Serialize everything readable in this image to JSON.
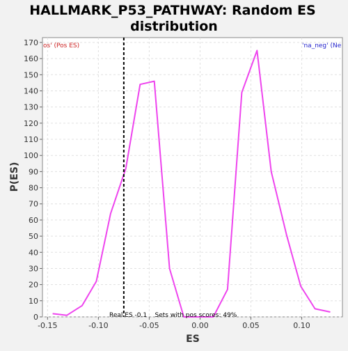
{
  "chart_data": {
    "type": "line",
    "title": "HALLMARK_P53_PATHWAY: Random ES distribution",
    "title_lines": [
      "HALLMARK_P53_PATHWAY: Random ES",
      "distribution"
    ],
    "xlabel": "ES",
    "ylabel": "P(ES)",
    "xlim": [
      -0.155,
      0.14
    ],
    "ylim": [
      0,
      173
    ],
    "x_ticks": [
      -0.15,
      -0.1,
      -0.05,
      0.0,
      0.05,
      0.1
    ],
    "x_tick_labels": [
      "-0.15",
      "-0.10",
      "-0.05",
      "0.00",
      "0.05",
      "0.10"
    ],
    "y_ticks": [
      0,
      10,
      20,
      30,
      40,
      50,
      60,
      70,
      80,
      90,
      100,
      110,
      120,
      130,
      140,
      150,
      160,
      170
    ],
    "grid": true,
    "series": [
      {
        "color": "#ee44ee",
        "x": [
          -0.145,
          -0.131,
          -0.116,
          -0.102,
          -0.088,
          -0.073,
          -0.059,
          -0.045,
          -0.03,
          -0.016,
          -0.001,
          0.013,
          0.027,
          0.041,
          0.056,
          0.07,
          0.085,
          0.099,
          0.113,
          0.128
        ],
        "y": [
          2,
          1,
          7,
          22,
          64,
          92,
          144,
          146,
          30,
          0,
          0,
          0,
          17,
          139,
          165,
          90,
          51,
          19,
          5,
          3
        ]
      }
    ],
    "real_es_line": {
      "x": -0.075,
      "color": "#000000"
    },
    "annotations": {
      "left_label": "os' (Pos ES)",
      "left_color": "#cc2222",
      "right_label": "'na_neg' (Ne",
      "right_color": "#2222cc",
      "bottom_label": "Real ES -0.1    Sets with pos scores: 49%"
    }
  }
}
